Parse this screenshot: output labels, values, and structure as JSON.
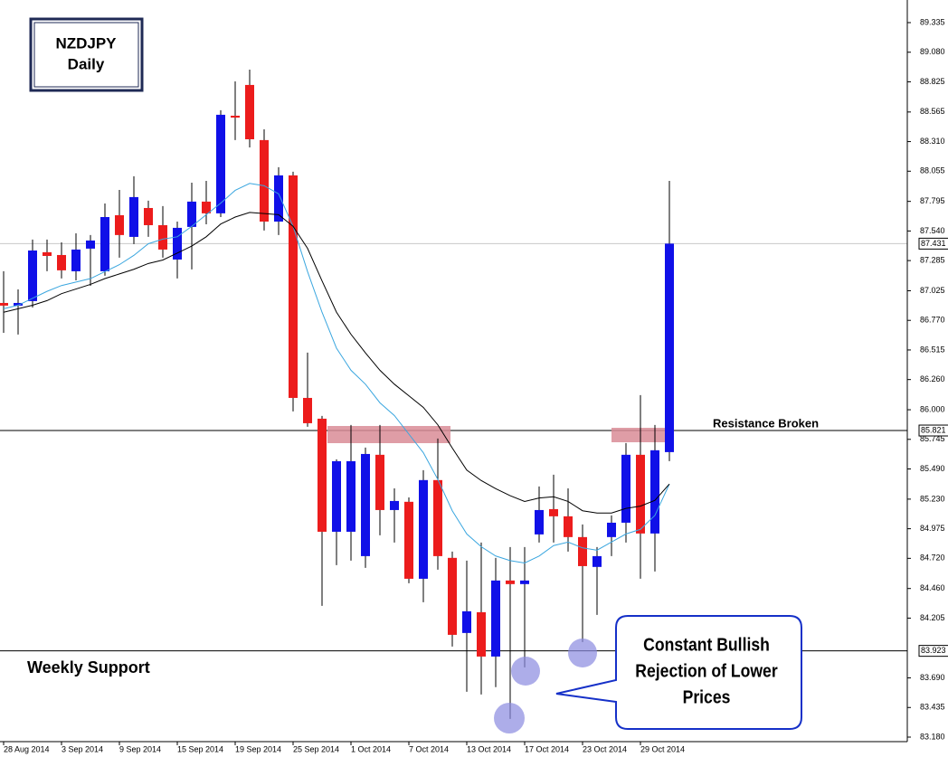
{
  "chart_data": {
    "type": "candlestick",
    "title": "NZDJPY",
    "subtitle": "Daily",
    "categories": [
      "28 Aug 2014",
      null,
      null,
      null,
      "3 Sep 2014",
      null,
      null,
      null,
      "9 Sep 2014",
      null,
      null,
      null,
      "15 Sep 2014",
      null,
      null,
      null,
      "19 Sep 2014",
      null,
      null,
      null,
      "25 Sep 2014",
      null,
      null,
      null,
      "1 Oct 2014",
      null,
      null,
      null,
      "7 Oct 2014",
      null,
      null,
      null,
      "13 Oct 2014",
      null,
      null,
      null,
      "17 Oct 2014",
      null,
      null,
      null,
      "23 Oct 2014",
      null,
      null,
      null,
      "29 Oct 2014",
      null,
      null
    ],
    "open": [
      86.92,
      86.897,
      86.936,
      87.357,
      87.333,
      87.193,
      87.388,
      87.193,
      87.676,
      87.489,
      87.738,
      87.59,
      87.294,
      87.575,
      87.793,
      87.692,
      88.533,
      88.798,
      88.323,
      87.621,
      88.019,
      86.102,
      85.923,
      84.949,
      84.949,
      84.739,
      85.612,
      85.136,
      85.207,
      84.544,
      85.394,
      84.724,
      84.077,
      84.256,
      83.874,
      84.529,
      84.498,
      84.926,
      85.144,
      85.082,
      84.903,
      84.646,
      84.903,
      85.027,
      85.612,
      84.934,
      85.635
    ],
    "high": [
      87.193,
      87.037,
      87.466,
      87.466,
      87.442,
      87.52,
      87.505,
      87.777,
      87.894,
      88.011,
      87.801,
      87.754,
      87.621,
      87.956,
      87.972,
      88.58,
      88.829,
      88.93,
      88.416,
      88.089,
      88.05,
      86.492,
      85.947,
      85.573,
      85.869,
      85.674,
      85.869,
      85.323,
      85.245,
      85.479,
      85.752,
      84.778,
      84.7,
      84.856,
      84.724,
      84.817,
      84.817,
      85.339,
      85.44,
      85.323,
      85.012,
      84.817,
      85.09,
      85.713,
      86.126,
      85.869,
      87.972
    ],
    "low": [
      86.663,
      86.648,
      86.881,
      87.193,
      87.131,
      87.115,
      87.068,
      87.154,
      87.31,
      87.427,
      87.489,
      87.31,
      87.131,
      87.209,
      87.598,
      87.66,
      88.323,
      88.26,
      87.544,
      87.505,
      85.986,
      85.853,
      84.311,
      84.661,
      84.7,
      84.638,
      84.918,
      84.856,
      84.505,
      84.342,
      84.622,
      83.96,
      83.571,
      83.547,
      83.61,
      83.337,
      83.781,
      84.856,
      84.856,
      84.778,
      83.999,
      84.233,
      84.739,
      84.856,
      84.544,
      84.607,
      85.557
    ],
    "close": [
      86.897,
      86.92,
      87.372,
      87.325,
      87.201,
      87.38,
      87.458,
      87.66,
      87.505,
      87.832,
      87.59,
      87.38,
      87.567,
      87.793,
      87.692,
      88.541,
      88.517,
      88.33,
      87.621,
      88.019,
      86.102,
      85.884,
      84.949,
      85.557,
      85.557,
      85.619,
      85.136,
      85.214,
      84.544,
      85.394,
      84.739,
      84.061,
      84.264,
      83.874,
      84.529,
      84.498,
      84.529,
      85.136,
      85.082,
      84.903,
      84.653,
      84.739,
      85.027,
      85.612,
      84.934,
      85.651,
      87.431
    ],
    "up_color": "#1010e8",
    "down_color": "#ec1c1c",
    "overlays": [
      {
        "color": "#3aa6df",
        "values": [
          86.87,
          86.9,
          86.96,
          87.02,
          87.07,
          87.1,
          87.13,
          87.19,
          87.25,
          87.33,
          87.43,
          87.47,
          87.49,
          87.58,
          87.68,
          87.78,
          87.89,
          87.95,
          87.93,
          87.86,
          87.58,
          87.19,
          86.84,
          86.53,
          86.34,
          86.22,
          86.06,
          85.95,
          85.79,
          85.63,
          85.4,
          85.13,
          84.93,
          84.82,
          84.74,
          84.7,
          84.68,
          84.74,
          84.83,
          84.86,
          84.81,
          84.79,
          84.86,
          84.93,
          84.97,
          85.09,
          85.36
        ]
      },
      {
        "color": "#000000",
        "values": [
          86.84,
          86.87,
          86.9,
          86.94,
          87.0,
          87.04,
          87.08,
          87.13,
          87.17,
          87.21,
          87.26,
          87.29,
          87.35,
          87.41,
          87.49,
          87.6,
          87.66,
          87.7,
          87.69,
          87.68,
          87.58,
          87.39,
          87.11,
          86.84,
          86.65,
          86.49,
          86.34,
          86.22,
          86.12,
          86.02,
          85.87,
          85.67,
          85.48,
          85.39,
          85.32,
          85.26,
          85.21,
          85.24,
          85.25,
          85.21,
          85.13,
          85.11,
          85.11,
          85.15,
          85.17,
          85.22,
          85.36
        ]
      }
    ],
    "hlines": [
      85.821,
      83.923
    ],
    "ylim": [
      83.18,
      89.335
    ],
    "yticks": [
      89.335,
      {
        "value": 89.08,
        "label": "89.080"
      },
      88.825,
      88.565,
      {
        "value": 88.31,
        "label": "88.310"
      },
      88.055,
      87.795,
      {
        "value": 87.54,
        "label": "87.540"
      },
      87.285,
      87.025,
      {
        "value": 86.77,
        "label": "86.770"
      },
      86.515,
      {
        "value": 86.26,
        "label": "86.260"
      },
      {
        "value": 86.0,
        "label": "86.000"
      },
      85.745,
      {
        "value": 85.49,
        "label": "85.490"
      },
      {
        "value": 85.23,
        "label": "85.230"
      },
      84.975,
      {
        "value": 84.72,
        "label": "84.720"
      },
      {
        "value": 84.46,
        "label": "84.460"
      },
      84.205,
      {
        "value": 83.69,
        "label": "83.690"
      },
      83.435,
      {
        "value": 83.18,
        "label": "83.180"
      }
    ],
    "annotations": {
      "resistance": "Resistance Broken",
      "support": "Weekly Support",
      "callout": [
        "Constant Bullish",
        "Rejection of Lower",
        "Prices"
      ]
    }
  }
}
